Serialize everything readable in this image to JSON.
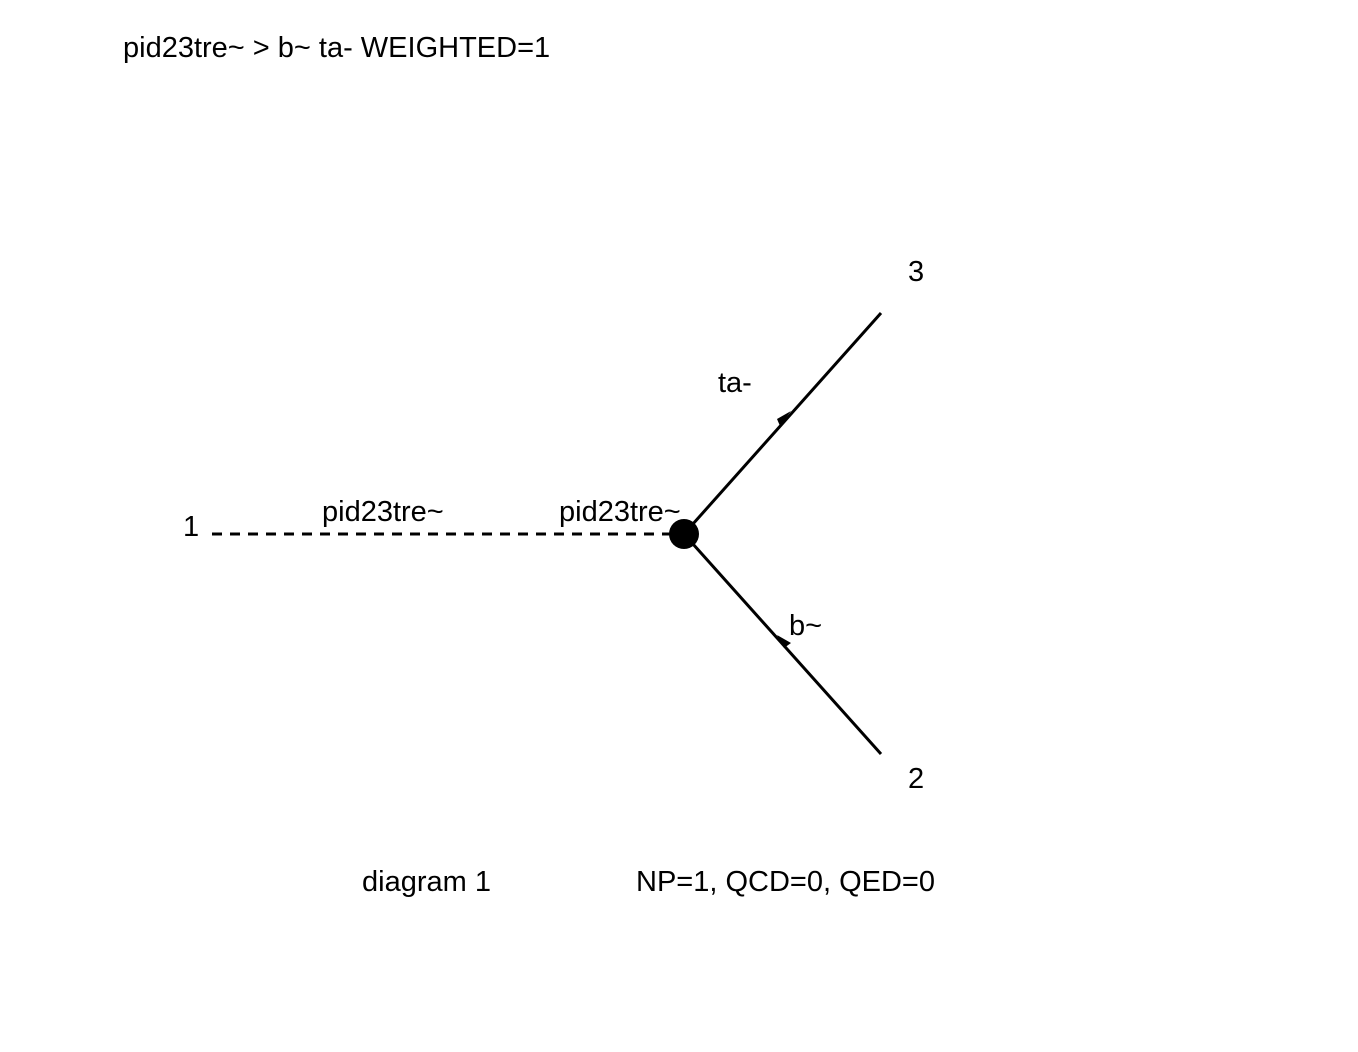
{
  "title": "pid23tre~ > b~ ta- WEIGHTED=1",
  "diagram_number": "diagram 1",
  "couplings": "NP=1, QCD=0, QED=0",
  "external_legs": [
    {
      "number": "1"
    },
    {
      "number": "2"
    },
    {
      "number": "3"
    }
  ],
  "propagators": [
    {
      "label_left": "pid23tre~",
      "label_right": "pid23tre~",
      "style": "dashed"
    },
    {
      "label": "ta-",
      "style": "solid-arrow"
    },
    {
      "label": "b~",
      "style": "solid-arrow"
    }
  ],
  "vertex": {
    "style": "filled-dot"
  }
}
